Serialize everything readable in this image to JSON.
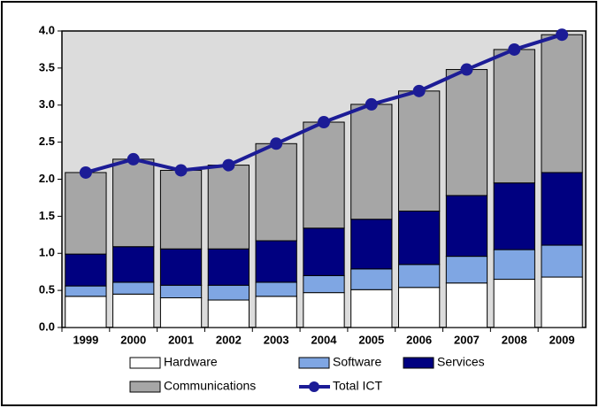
{
  "chart_data": {
    "type": "bar",
    "stacked": true,
    "categories": [
      "1999",
      "2000",
      "2001",
      "2002",
      "2003",
      "2004",
      "2005",
      "2006",
      "2007",
      "2008",
      "2009"
    ],
    "series": [
      {
        "name": "Hardware",
        "color": "#ffffff",
        "values": [
          0.42,
          0.45,
          0.4,
          0.37,
          0.42,
          0.47,
          0.51,
          0.54,
          0.6,
          0.65,
          0.68
        ]
      },
      {
        "name": "Software",
        "color": "#7fa6e3",
        "values": [
          0.14,
          0.16,
          0.17,
          0.2,
          0.19,
          0.23,
          0.28,
          0.31,
          0.36,
          0.4,
          0.43
        ]
      },
      {
        "name": "Services",
        "color": "#000080",
        "values": [
          0.43,
          0.48,
          0.49,
          0.49,
          0.56,
          0.64,
          0.67,
          0.72,
          0.82,
          0.9,
          0.98
        ]
      },
      {
        "name": "Communications",
        "color": "#a6a6a6",
        "values": [
          1.1,
          1.18,
          1.06,
          1.13,
          1.31,
          1.43,
          1.55,
          1.62,
          1.7,
          1.8,
          1.86
        ]
      },
      {
        "name": "Total ICT",
        "color": "#1c1c96",
        "type": "line",
        "values": [
          2.09,
          2.27,
          2.12,
          2.19,
          2.48,
          2.77,
          3.01,
          3.19,
          3.48,
          3.75,
          3.95
        ]
      }
    ],
    "ylim": [
      0,
      4
    ],
    "yticks": [
      {
        "value": 0,
        "label": "0.0"
      },
      0.5,
      {
        "value": 1,
        "label": "1.0"
      },
      1.5,
      {
        "value": 2,
        "label": "2.0"
      },
      2.5,
      {
        "value": 3,
        "label": "3.0"
      },
      3.5,
      {
        "value": 4,
        "label": "4.0"
      }
    ],
    "legend": "bottom"
  }
}
